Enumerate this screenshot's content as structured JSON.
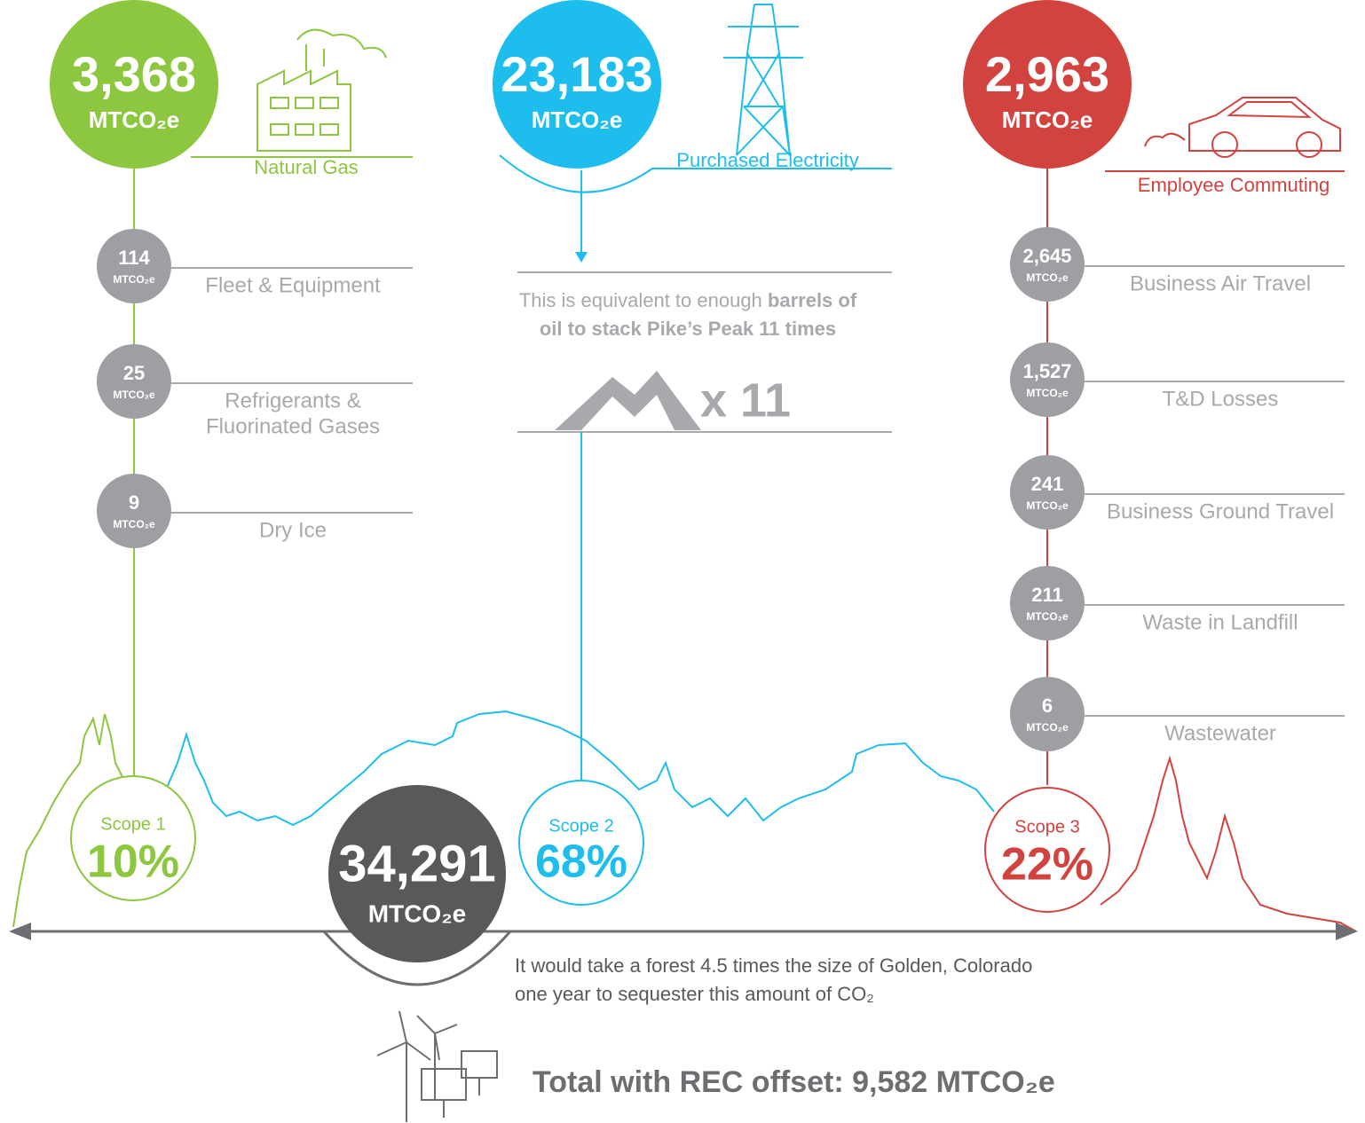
{
  "sources": [
    {
      "value": "3,368",
      "unit": "MTCO₂e",
      "label": "Natural Gas"
    },
    {
      "value": "23,183",
      "unit": "MTCO₂e",
      "label": "Purchased Electricity"
    },
    {
      "value": "2,963",
      "unit": "MTCO₂e",
      "label": "Employee Commuting"
    }
  ],
  "scope1_items": [
    {
      "value": "114",
      "unit": "MTCO₂e",
      "label": "Fleet & Equipment"
    },
    {
      "value": "25",
      "unit": "MTCO₂e",
      "label": [
        "Refrigerants &",
        "Fluorinated Gases"
      ]
    },
    {
      "value": "9",
      "unit": "MTCO₂e",
      "label": "Dry Ice"
    }
  ],
  "scope3_items": [
    {
      "value": "2,645",
      "unit": "MTCO₂e",
      "label": "Business Air Travel"
    },
    {
      "value": "1,527",
      "unit": "MTCO₂e",
      "label": "T&D Losses"
    },
    {
      "value": "241",
      "unit": "MTCO₂e",
      "label": "Business Ground Travel"
    },
    {
      "value": "211",
      "unit": "MTCO₂e",
      "label": "Waste in Landfill"
    },
    {
      "value": "6",
      "unit": "MTCO₂e",
      "label": "Wastewater"
    }
  ],
  "equivalent": {
    "line1": [
      "This is equivalent to enough ",
      "barrels of"
    ],
    "line2": "oil to stack Pike’s Peak 11 times",
    "multiplier": "x 11"
  },
  "scopes": [
    {
      "label": "Scope 1",
      "percent": "10%"
    },
    {
      "label": "Scope 2",
      "percent": "68%"
    },
    {
      "label": "Scope 3",
      "percent": "22%"
    }
  ],
  "total": {
    "value": "34,291",
    "unit": "MTCO₂e"
  },
  "forest": [
    "It would take a forest 4.5 times the size of Golden, Colorado",
    "one year to sequester this amount of CO₂"
  ],
  "offset": "Total  with REC offset: 9,582 MTCO₂e"
}
